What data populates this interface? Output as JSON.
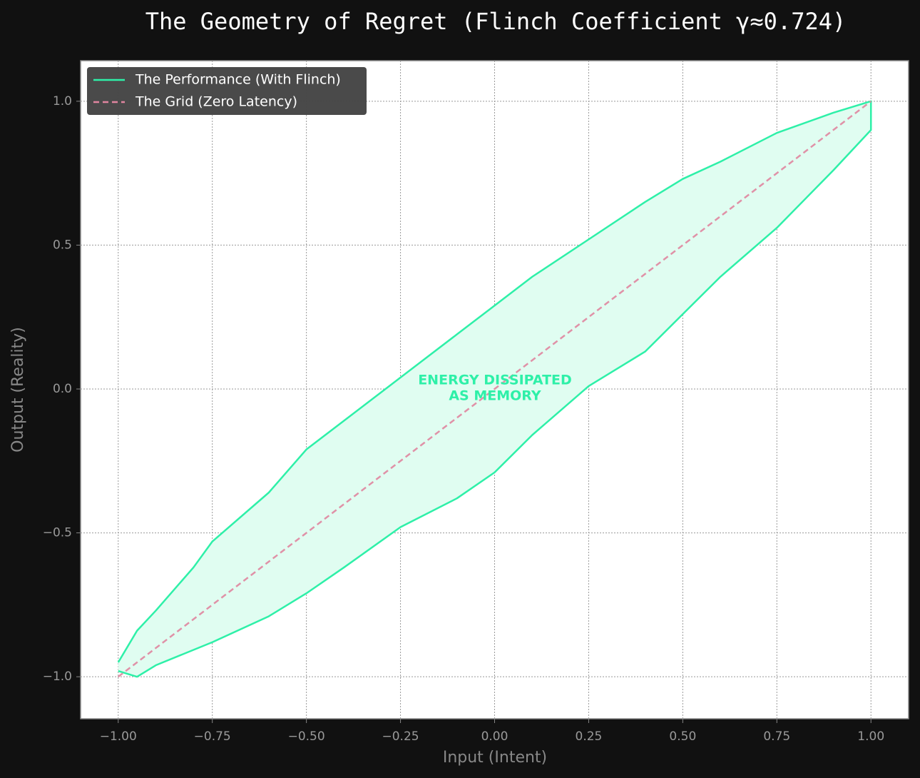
{
  "chart_data": {
    "type": "line",
    "title": "The Geometry of Regret (Flinch Coefficient γ≈0.724)",
    "x_label": "Input (Intent)",
    "y_label": "Output (Reality)",
    "annotation": [
      "ENERGY DISSIPATED",
      "AS MEMORY"
    ],
    "annotation_color": "#2ef0a8",
    "series": [
      {
        "name": "The Performance (With Flinch)",
        "color": "#2ef0a8",
        "fill_color": "#e0fdf1",
        "x": [
          -1,
          -0.95,
          -0.9,
          -0.8,
          -0.75,
          -0.6,
          -0.5,
          -0.4,
          -0.25,
          -0.1,
          0,
          0.1,
          0.25,
          0.4,
          0.5,
          0.6,
          0.75,
          0.9,
          1,
          1,
          0.9,
          0.75,
          0.6,
          0.5,
          0.4,
          0.25,
          0.1,
          0,
          -0.1,
          -0.25,
          -0.4,
          -0.5,
          -0.6,
          -0.75,
          -0.9,
          -0.95,
          -1
        ],
        "y": [
          -0.95,
          -0.84,
          -0.77,
          -0.62,
          -0.53,
          -0.36,
          -0.21,
          -0.11,
          0.04,
          0.19,
          0.29,
          0.39,
          0.52,
          0.65,
          0.73,
          0.79,
          0.89,
          0.96,
          1.0,
          0.9,
          0.76,
          0.56,
          0.39,
          0.26,
          0.13,
          0.01,
          -0.16,
          -0.29,
          -0.38,
          -0.48,
          -0.62,
          -0.71,
          -0.79,
          -0.88,
          -0.96,
          -1.0,
          -0.98
        ]
      },
      {
        "name": "The Grid (Zero Latency)",
        "color": "#e0859f",
        "dashed": true,
        "x": [
          -1,
          1
        ],
        "y": [
          -1,
          1
        ]
      }
    ],
    "xlim": [
      -1.1,
      1.1
    ],
    "ylim": [
      -1.146,
      1.141
    ],
    "xticks": [
      {
        "value": -1,
        "label": "−1.00"
      },
      {
        "value": -0.75,
        "label": "−0.75"
      },
      {
        "value": -0.5,
        "label": "−0.50"
      },
      {
        "value": -0.25,
        "label": "−0.25"
      },
      {
        "value": 0,
        "label": "0.00"
      },
      {
        "value": 0.25,
        "label": "0.25"
      },
      {
        "value": 0.5,
        "label": "0.50"
      },
      {
        "value": 0.75,
        "label": "0.75"
      },
      {
        "value": 1,
        "label": "1.00"
      }
    ],
    "yticks": [
      {
        "value": -1,
        "label": "−1.0"
      },
      {
        "value": -0.5,
        "label": "−0.5"
      },
      {
        "value": 0,
        "label": "0.0"
      },
      {
        "value": 0.5,
        "label": "0.5"
      },
      {
        "value": 1,
        "label": "1.0"
      }
    ],
    "grid": true,
    "legend": "upper-left"
  }
}
